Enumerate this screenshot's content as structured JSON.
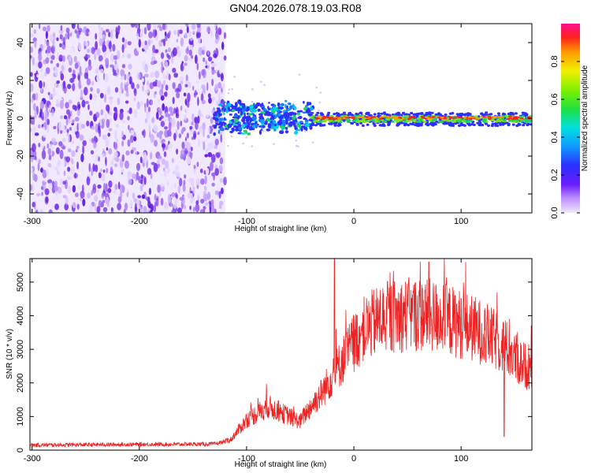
{
  "title": "GN04.2026.078.19.03.R08",
  "chart_data": [
    {
      "type": "heatmap",
      "name": "spectrogram",
      "xlabel": "Height of straight line (km)",
      "ylabel": "Frequency (Hz)",
      "xlim": [
        -302,
        166
      ],
      "ylim": [
        -50,
        50
      ],
      "xticks": [
        -300,
        -200,
        -100,
        0,
        100
      ],
      "yticks": [
        -40,
        -20,
        0,
        20,
        40
      ],
      "noise_region_end_km": -120,
      "signal_band_hz": [
        -4,
        3
      ],
      "colorbar": {
        "label": "Normalized spectral amplitude",
        "range": [
          0.0,
          1.0
        ],
        "ticks": [
          "0.0",
          "0.2",
          "0.4",
          "0.6",
          "0.8"
        ]
      }
    },
    {
      "type": "line",
      "name": "snr",
      "color": "#ee2222",
      "xlabel": "Height of straight line (km)",
      "ylabel": "SNR (10 * v/v)",
      "xlim": [
        -302,
        166
      ],
      "ylim": [
        0,
        5700
      ],
      "xticks": [
        -300,
        -200,
        -100,
        0,
        100
      ],
      "yticks": [
        0,
        1000,
        2000,
        3000,
        4000,
        5000
      ],
      "envelope": {
        "x": [
          -302,
          -200,
          -130,
          -115,
          -100,
          -80,
          -60,
          -50,
          -45,
          -30,
          -20,
          -10,
          0,
          10,
          25,
          40,
          60,
          80,
          100,
          120,
          140,
          155,
          166
        ],
        "y": [
          150,
          170,
          180,
          300,
          900,
          1300,
          1000,
          850,
          1100,
          1700,
          2200,
          2700,
          3200,
          3600,
          3900,
          4000,
          4050,
          3950,
          3750,
          3500,
          3100,
          2600,
          2400
        ]
      }
    }
  ]
}
